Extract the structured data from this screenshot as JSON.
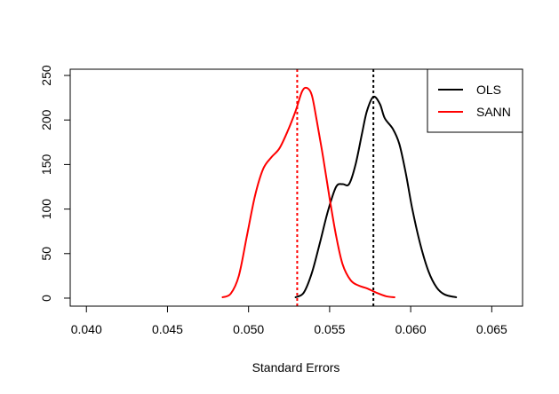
{
  "chart_data": {
    "type": "line",
    "title": "",
    "xlabel": "Standard Errors",
    "ylabel": "",
    "xlim": [
      0.039,
      0.0669
    ],
    "ylim": [
      -9,
      257
    ],
    "x_ticks": [
      {
        "value": 0.04,
        "label": "0.040"
      },
      {
        "value": 0.045,
        "label": "0.045"
      },
      {
        "value": 0.05,
        "label": "0.050"
      },
      {
        "value": 0.055,
        "label": "0.055"
      },
      {
        "value": 0.06,
        "label": "0.060"
      },
      {
        "value": 0.065,
        "label": "0.065"
      }
    ],
    "y_ticks": [
      {
        "value": 0,
        "label": "0"
      },
      {
        "value": 50,
        "label": "50"
      },
      {
        "value": 100,
        "label": "100"
      },
      {
        "value": 150,
        "label": "150"
      },
      {
        "value": 200,
        "label": "200"
      },
      {
        "value": 250,
        "label": "250"
      }
    ],
    "grid": false,
    "legend_position": "top-right",
    "series": [
      {
        "name": "OLS",
        "color": "#000000",
        "reference_line": 0.0577,
        "points": [
          [
            0.0529,
            1
          ],
          [
            0.0534,
            6
          ],
          [
            0.0539,
            28
          ],
          [
            0.0544,
            62
          ],
          [
            0.0549,
            98
          ],
          [
            0.0554,
            125
          ],
          [
            0.0558,
            128
          ],
          [
            0.0562,
            128
          ],
          [
            0.0566,
            150
          ],
          [
            0.057,
            185
          ],
          [
            0.0573,
            210
          ],
          [
            0.0577,
            226
          ],
          [
            0.0581,
            218
          ],
          [
            0.0584,
            202
          ],
          [
            0.0589,
            190
          ],
          [
            0.0593,
            173
          ],
          [
            0.0597,
            140
          ],
          [
            0.0601,
            100
          ],
          [
            0.0606,
            60
          ],
          [
            0.0611,
            30
          ],
          [
            0.0616,
            12
          ],
          [
            0.0621,
            4
          ],
          [
            0.0628,
            1
          ]
        ]
      },
      {
        "name": "SANN",
        "color": "#ff0000",
        "reference_line": 0.053,
        "points": [
          [
            0.0484,
            1
          ],
          [
            0.0489,
            5
          ],
          [
            0.0494,
            25
          ],
          [
            0.0499,
            70
          ],
          [
            0.0504,
            115
          ],
          [
            0.0509,
            145
          ],
          [
            0.0514,
            158
          ],
          [
            0.0519,
            168
          ],
          [
            0.0524,
            187
          ],
          [
            0.0529,
            210
          ],
          [
            0.0533,
            232
          ],
          [
            0.0536,
            236
          ],
          [
            0.0539,
            228
          ],
          [
            0.0542,
            200
          ],
          [
            0.0546,
            158
          ],
          [
            0.055,
            112
          ],
          [
            0.0554,
            70
          ],
          [
            0.0558,
            38
          ],
          [
            0.0563,
            20
          ],
          [
            0.0568,
            14
          ],
          [
            0.0573,
            11
          ],
          [
            0.0579,
            6
          ],
          [
            0.0585,
            2
          ],
          [
            0.059,
            1
          ]
        ]
      }
    ]
  }
}
